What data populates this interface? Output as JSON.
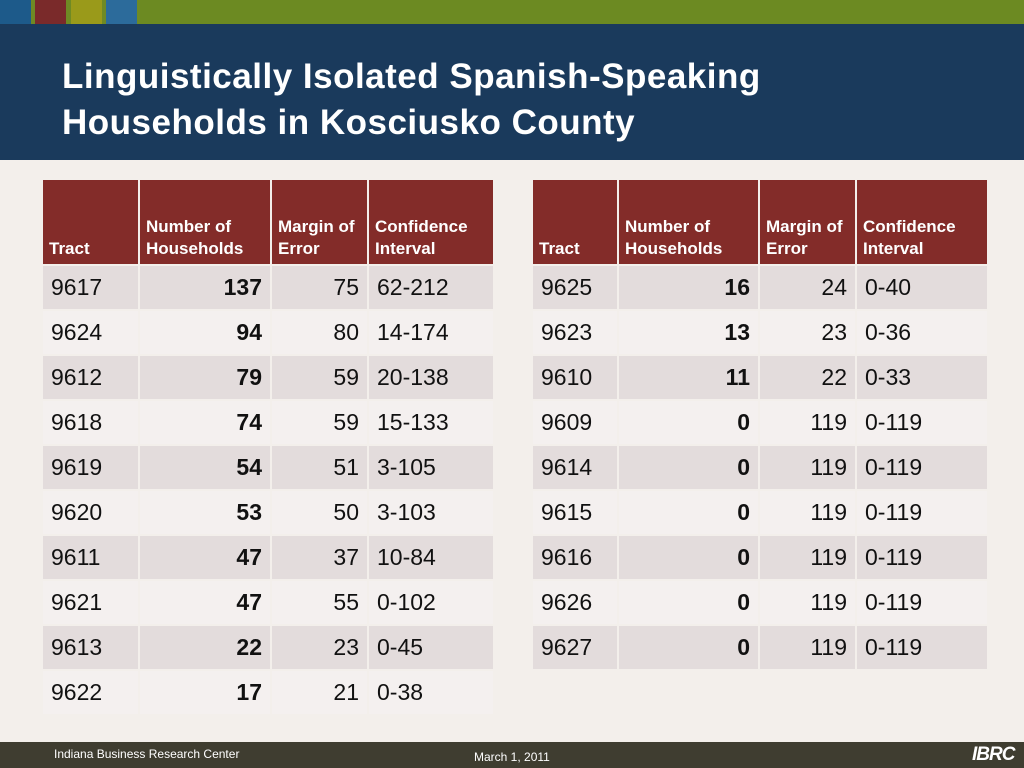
{
  "title_line1": "Linguistically Isolated Spanish-Speaking",
  "title_line2": "Households in Kosciusko County",
  "headers": {
    "tract": "Tract",
    "households": "Number of Households",
    "moe": "Margin of Error",
    "ci": "Confidence Interval"
  },
  "left_rows": [
    {
      "tract": "9617",
      "households": "137",
      "moe": "75",
      "ci": "62-212"
    },
    {
      "tract": "9624",
      "households": "94",
      "moe": "80",
      "ci": "14-174"
    },
    {
      "tract": "9612",
      "households": "79",
      "moe": "59",
      "ci": "20-138"
    },
    {
      "tract": "9618",
      "households": "74",
      "moe": "59",
      "ci": "15-133"
    },
    {
      "tract": "9619",
      "households": "54",
      "moe": "51",
      "ci": "3-105"
    },
    {
      "tract": "9620",
      "households": "53",
      "moe": "50",
      "ci": "3-103"
    },
    {
      "tract": "9611",
      "households": "47",
      "moe": "37",
      "ci": "10-84"
    },
    {
      "tract": "9621",
      "households": "47",
      "moe": "55",
      "ci": "0-102"
    },
    {
      "tract": "9613",
      "households": "22",
      "moe": "23",
      "ci": "0-45"
    },
    {
      "tract": "9622",
      "households": "17",
      "moe": "21",
      "ci": "0-38"
    }
  ],
  "right_rows": [
    {
      "tract": "9625",
      "households": "16",
      "moe": "24",
      "ci": "0-40"
    },
    {
      "tract": "9623",
      "households": "13",
      "moe": "23",
      "ci": "0-36"
    },
    {
      "tract": "9610",
      "households": "11",
      "moe": "22",
      "ci": "0-33"
    },
    {
      "tract": "9609",
      "households": "0",
      "moe": "119",
      "ci": "0-119"
    },
    {
      "tract": "9614",
      "households": "0",
      "moe": "119",
      "ci": "0-119"
    },
    {
      "tract": "9615",
      "households": "0",
      "moe": "119",
      "ci": "0-119"
    },
    {
      "tract": "9616",
      "households": "0",
      "moe": "119",
      "ci": "0-119"
    },
    {
      "tract": "9626",
      "households": "0",
      "moe": "119",
      "ci": "0-119"
    },
    {
      "tract": "9627",
      "households": "0",
      "moe": "119",
      "ci": "0-119"
    }
  ],
  "footer": {
    "org": "Indiana Business Research Center",
    "date": "March 1, 2011",
    "logo_text": "IBRC"
  }
}
